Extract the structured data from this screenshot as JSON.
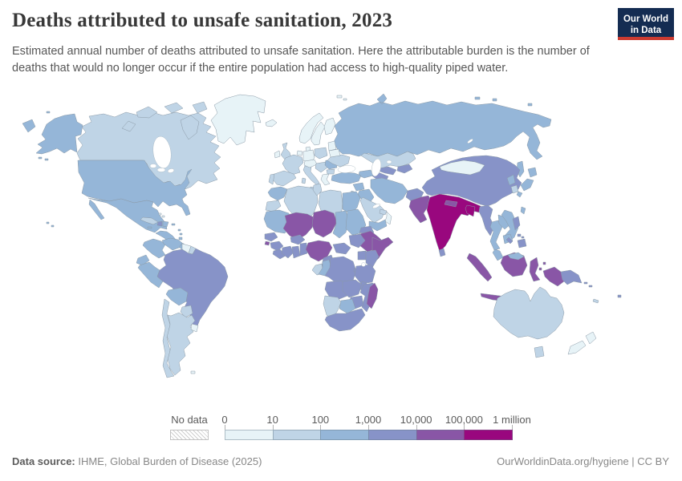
{
  "header": {
    "title": "Deaths attributed to unsafe sanitation, 2023",
    "subtitle": "Estimated annual number of deaths attributed to unsafe sanitation. Here the attributable burden is the number of deaths that would no longer occur if the entire population had access to high-quality piped water.",
    "logo": {
      "line1": "Our World",
      "line2": "in Data",
      "bg_color": "#142c52",
      "accent_color": "#cc3b31",
      "text_color": "#ffffff"
    }
  },
  "legend": {
    "no_data_label": "No data",
    "tick_labels": [
      "0",
      "10",
      "100",
      "1,000",
      "10,000",
      "100,000",
      "1 million"
    ],
    "bins": [
      {
        "label": "0-10",
        "color": "#e7f3f7"
      },
      {
        "label": "10-100",
        "color": "#bfd4e6"
      },
      {
        "label": "100-1,000",
        "color": "#95b6d8"
      },
      {
        "label": "1,000-10,000",
        "color": "#8793c8"
      },
      {
        "label": "10,000-100,000",
        "color": "#8956a6"
      },
      {
        "label": "100,000-1 million",
        "color": "#99077e"
      }
    ]
  },
  "footer": {
    "source_label": "Data source:",
    "source_text": " IHME, Global Burden of Disease (2025)",
    "credit_text": "OurWorldinData.org/hygiene | CC BY"
  },
  "chart_data": {
    "type": "heatmap",
    "subtype": "choropleth_world_map",
    "title": "Deaths attributed to unsafe sanitation, 2023",
    "unit": "deaths per year",
    "scale": "logarithmic bins",
    "bin_edges": [
      "0",
      "10",
      "100",
      "1,000",
      "10,000",
      "100,000",
      "1 million"
    ],
    "legend_position": "bottom",
    "no_data_style": "hatched",
    "regions": [
      {
        "name": "Russia",
        "bin": 3
      },
      {
        "name": "Canada",
        "bin": 2
      },
      {
        "name": "United States",
        "bin": 3
      },
      {
        "name": "Greenland",
        "bin": 1
      },
      {
        "name": "Canadian Arctic Islands",
        "bin": 2
      },
      {
        "name": "Mexico",
        "bin": 3
      },
      {
        "name": "Central America",
        "bin": 3
      },
      {
        "name": "Cuba",
        "bin": 2
      },
      {
        "name": "Haiti",
        "bin": 4
      },
      {
        "name": "Dominican Republic",
        "bin": 3
      },
      {
        "name": "Jamaica",
        "bin": 3
      },
      {
        "name": "Puerto Rico",
        "bin": 3
      },
      {
        "name": "Bahamas",
        "bin": 1
      },
      {
        "name": "Lesser Antilles",
        "bin": 3
      },
      {
        "name": "Trinidad and Tobago",
        "bin": 3
      },
      {
        "name": "Colombia",
        "bin": 3
      },
      {
        "name": "Venezuela",
        "bin": 3
      },
      {
        "name": "Guyana and Suriname",
        "bin": 1
      },
      {
        "name": "French Guiana",
        "bin": 2
      },
      {
        "name": "Ecuador",
        "bin": 3
      },
      {
        "name": "Peru",
        "bin": 3
      },
      {
        "name": "Brazil",
        "bin": 4
      },
      {
        "name": "Bolivia",
        "bin": 3
      },
      {
        "name": "Paraguay",
        "bin": 2
      },
      {
        "name": "Argentina",
        "bin": 2
      },
      {
        "name": "Chile",
        "bin": 2
      },
      {
        "name": "Uruguay",
        "bin": 1
      },
      {
        "name": "Falkland Islands",
        "bin": 1
      },
      {
        "name": "Iceland",
        "bin": 1
      },
      {
        "name": "Ireland",
        "bin": 1
      },
      {
        "name": "United Kingdom",
        "bin": 2
      },
      {
        "name": "Norway",
        "bin": 1
      },
      {
        "name": "Sweden",
        "bin": 1
      },
      {
        "name": "Finland",
        "bin": 1
      },
      {
        "name": "Denmark",
        "bin": 1
      },
      {
        "name": "Baltic States",
        "bin": 1
      },
      {
        "name": "Netherlands and Belgium",
        "bin": 1
      },
      {
        "name": "Germany",
        "bin": 1
      },
      {
        "name": "Poland",
        "bin": 2
      },
      {
        "name": "France",
        "bin": 2
      },
      {
        "name": "Spain",
        "bin": 2
      },
      {
        "name": "Portugal",
        "bin": 2
      },
      {
        "name": "Italy",
        "bin": 2
      },
      {
        "name": "Corsica and Sardinia",
        "bin": 2
      },
      {
        "name": "Central Europe",
        "bin": 1
      },
      {
        "name": "Balkans",
        "bin": 2
      },
      {
        "name": "Romania",
        "bin": 3
      },
      {
        "name": "Bulgaria",
        "bin": 2
      },
      {
        "name": "Greece",
        "bin": 1
      },
      {
        "name": "Ukraine",
        "bin": 2
      },
      {
        "name": "Belarus",
        "bin": 1
      },
      {
        "name": "Kazakhstan",
        "bin": 2
      },
      {
        "name": "Uzbekistan",
        "bin": 4
      },
      {
        "name": "Turkmenistan",
        "bin": 4
      },
      {
        "name": "Kyrgyzstan and Tajikistan",
        "bin": 4
      },
      {
        "name": "Caucasus",
        "bin": 3
      },
      {
        "name": "Turkey",
        "bin": 3
      },
      {
        "name": "Syria",
        "bin": 3
      },
      {
        "name": "Iraq",
        "bin": 3
      },
      {
        "name": "Jordan and Israel",
        "bin": 2
      },
      {
        "name": "Saudi Arabia",
        "bin": 2
      },
      {
        "name": "United Arab Emirates",
        "bin": 2
      },
      {
        "name": "Oman",
        "bin": 1
      },
      {
        "name": "Yemen",
        "bin": 3
      },
      {
        "name": "Iran",
        "bin": 3
      },
      {
        "name": "Afghanistan",
        "bin": 4
      },
      {
        "name": "Pakistan",
        "bin": 5
      },
      {
        "name": "India",
        "bin": 6
      },
      {
        "name": "Nepal",
        "bin": 5
      },
      {
        "name": "Bangladesh",
        "bin": 6
      },
      {
        "name": "Sri Lanka",
        "bin": 4
      },
      {
        "name": "China",
        "bin": 4
      },
      {
        "name": "Mongolia",
        "bin": 1
      },
      {
        "name": "North Korea",
        "bin": 3
      },
      {
        "name": "South Korea",
        "bin": 2
      },
      {
        "name": "Japan",
        "bin": 3
      },
      {
        "name": "Taiwan",
        "bin": 3
      },
      {
        "name": "Myanmar",
        "bin": 4
      },
      {
        "name": "Thailand",
        "bin": 3
      },
      {
        "name": "Laos",
        "bin": 3
      },
      {
        "name": "Vietnam",
        "bin": 3
      },
      {
        "name": "Cambodia",
        "bin": 3
      },
      {
        "name": "Indonesia",
        "bin": 5
      },
      {
        "name": "Malaysia",
        "bin": 3
      },
      {
        "name": "Philippines",
        "bin": 4
      },
      {
        "name": "Timor-Leste",
        "bin": 4
      },
      {
        "name": "Papua New Guinea",
        "bin": 4
      },
      {
        "name": "Solomon Islands",
        "bin": 4
      },
      {
        "name": "Australia",
        "bin": 2
      },
      {
        "name": "New Zealand",
        "bin": 1
      },
      {
        "name": "New Caledonia",
        "bin": 2
      },
      {
        "name": "Fiji",
        "bin": 4
      },
      {
        "name": "Morocco",
        "bin": 3
      },
      {
        "name": "Western Sahara",
        "bin": 2
      },
      {
        "name": "Algeria",
        "bin": 2
      },
      {
        "name": "Tunisia",
        "bin": 2
      },
      {
        "name": "Libya",
        "bin": 2
      },
      {
        "name": "Egypt",
        "bin": 3
      },
      {
        "name": "Mauritania",
        "bin": 3
      },
      {
        "name": "Mali",
        "bin": 5
      },
      {
        "name": "Burkina Faso",
        "bin": 4
      },
      {
        "name": "Niger",
        "bin": 5
      },
      {
        "name": "Chad",
        "bin": 3
      },
      {
        "name": "Sudan",
        "bin": 3
      },
      {
        "name": "Eritrea",
        "bin": 4
      },
      {
        "name": "Djibouti",
        "bin": 4
      },
      {
        "name": "Ethiopia",
        "bin": 5
      },
      {
        "name": "Somalia",
        "bin": 5
      },
      {
        "name": "Senegal",
        "bin": 4
      },
      {
        "name": "Guinea-Bissau",
        "bin": 5
      },
      {
        "name": "Guinea",
        "bin": 4
      },
      {
        "name": "Sierra Leone and Liberia",
        "bin": 4
      },
      {
        "name": "Cote d'Ivoire",
        "bin": 4
      },
      {
        "name": "Ghana",
        "bin": 4
      },
      {
        "name": "Togo and Benin",
        "bin": 4
      },
      {
        "name": "Nigeria",
        "bin": 5
      },
      {
        "name": "Cameroon",
        "bin": 4
      },
      {
        "name": "Central African Republic",
        "bin": 4
      },
      {
        "name": "South Sudan",
        "bin": 4
      },
      {
        "name": "Uganda",
        "bin": 4
      },
      {
        "name": "Kenya",
        "bin": 4
      },
      {
        "name": "Gabon",
        "bin": 2
      },
      {
        "name": "Congo",
        "bin": 3
      },
      {
        "name": "Democratic Republic of Congo",
        "bin": 4
      },
      {
        "name": "Rwanda and Burundi",
        "bin": 4
      },
      {
        "name": "Tanzania",
        "bin": 4
      },
      {
        "name": "Angola",
        "bin": 4
      },
      {
        "name": "Zambia",
        "bin": 4
      },
      {
        "name": "Malawi",
        "bin": 4
      },
      {
        "name": "Mozambique",
        "bin": 4
      },
      {
        "name": "Zimbabwe",
        "bin": 4
      },
      {
        "name": "Botswana",
        "bin": 3
      },
      {
        "name": "Namibia",
        "bin": 2
      },
      {
        "name": "South Africa",
        "bin": 4
      },
      {
        "name": "Madagascar",
        "bin": 5
      }
    ]
  }
}
